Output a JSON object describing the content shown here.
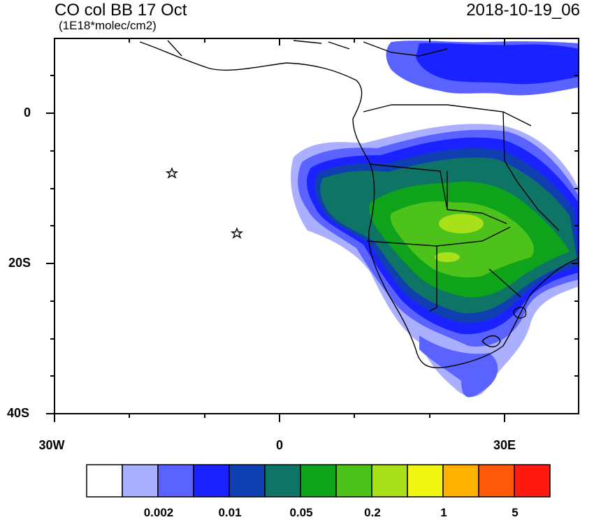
{
  "title": {
    "left": "CO col BB 17 Oct",
    "units": "(1E18*molec/cm2)",
    "right": "2018-10-19_06"
  },
  "axes": {
    "lat_labels": [
      "0",
      "20S",
      "40S"
    ],
    "lon_labels": [
      "30W",
      "0",
      "30E"
    ]
  },
  "colorbar": {
    "colors": [
      "#ffffff",
      "#aab0ff",
      "#5a63ff",
      "#1a22ff",
      "#0f3fb0",
      "#0e7566",
      "#0fa31c",
      "#4cc21a",
      "#a8e01a",
      "#f0f512",
      "#ffb000",
      "#ff5a0a",
      "#ff1a10"
    ],
    "labels": [
      "0.002",
      "0.01",
      "0.05",
      "0.2",
      "1",
      "5"
    ]
  },
  "markers": {
    "icon": "star-icon",
    "count": 2
  }
}
